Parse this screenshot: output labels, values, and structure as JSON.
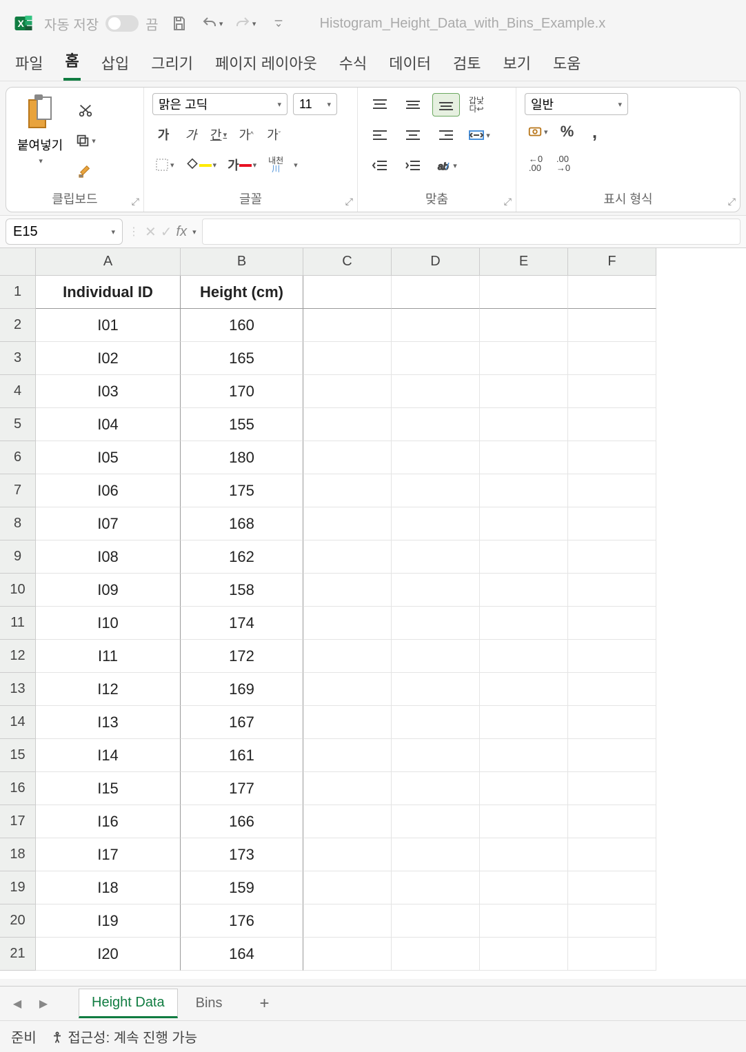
{
  "app": {
    "icon_color": "#107c41",
    "autosave_label": "자동 저장",
    "autosave_state": "끔",
    "document_title": "Histogram_Height_Data_with_Bins_Example.x"
  },
  "tabs": {
    "file": "파일",
    "home": "홈",
    "insert": "삽입",
    "draw": "그리기",
    "page_layout": "페이지 레이아웃",
    "formulas": "수식",
    "data": "데이터",
    "review": "검토",
    "view": "보기",
    "help": "도움",
    "active": "home"
  },
  "ribbon": {
    "clipboard": {
      "paste_label": "붙여넣기",
      "group_label": "클립보드"
    },
    "font": {
      "name": "맑은 고딕",
      "size": "11",
      "group_label": "글꼴",
      "vertical_label": "내천\n川"
    },
    "alignment": {
      "wrap_label": "갑낯\n다↩",
      "group_label": "맞춤"
    },
    "number": {
      "format": "일반",
      "group_label": "표시 형식"
    }
  },
  "formula_bar": {
    "cell_ref": "E15",
    "fx_label": "fx",
    "value": ""
  },
  "grid": {
    "col_widths": {
      "A": 210,
      "B": 178,
      "C": 128,
      "D": 128,
      "E": 128,
      "F": 128
    },
    "columns": [
      "A",
      "B",
      "C",
      "D",
      "E",
      "F"
    ],
    "headers": {
      "A": "Individual ID",
      "B": "Height (cm)"
    },
    "rows": [
      {
        "n": 1,
        "A": "Individual ID",
        "B": "Height (cm)",
        "is_header": true
      },
      {
        "n": 2,
        "A": "I01",
        "B": "160"
      },
      {
        "n": 3,
        "A": "I02",
        "B": "165"
      },
      {
        "n": 4,
        "A": "I03",
        "B": "170"
      },
      {
        "n": 5,
        "A": "I04",
        "B": "155"
      },
      {
        "n": 6,
        "A": "I05",
        "B": "180"
      },
      {
        "n": 7,
        "A": "I06",
        "B": "175"
      },
      {
        "n": 8,
        "A": "I07",
        "B": "168"
      },
      {
        "n": 9,
        "A": "I08",
        "B": "162"
      },
      {
        "n": 10,
        "A": "I09",
        "B": "158"
      },
      {
        "n": 11,
        "A": "I10",
        "B": "174"
      },
      {
        "n": 12,
        "A": "I11",
        "B": "172"
      },
      {
        "n": 13,
        "A": "I12",
        "B": "169"
      },
      {
        "n": 14,
        "A": "I13",
        "B": "167"
      },
      {
        "n": 15,
        "A": "I14",
        "B": "161"
      },
      {
        "n": 16,
        "A": "I15",
        "B": "177"
      },
      {
        "n": 17,
        "A": "I16",
        "B": "166"
      },
      {
        "n": 18,
        "A": "I17",
        "B": "173"
      },
      {
        "n": 19,
        "A": "I18",
        "B": "159"
      },
      {
        "n": 20,
        "A": "I19",
        "B": "176"
      },
      {
        "n": 21,
        "A": "I20",
        "B": "164"
      }
    ]
  },
  "sheets": {
    "active": "Height Data",
    "tabs": [
      "Height Data",
      "Bins"
    ]
  },
  "status": {
    "ready": "준비",
    "accessibility": "접근성: 계속 진행 가능"
  },
  "colors": {
    "brand": "#107c41",
    "header_bg": "#eef0ee",
    "border": "#cccccc",
    "grid_line": "#e4e4e4"
  }
}
